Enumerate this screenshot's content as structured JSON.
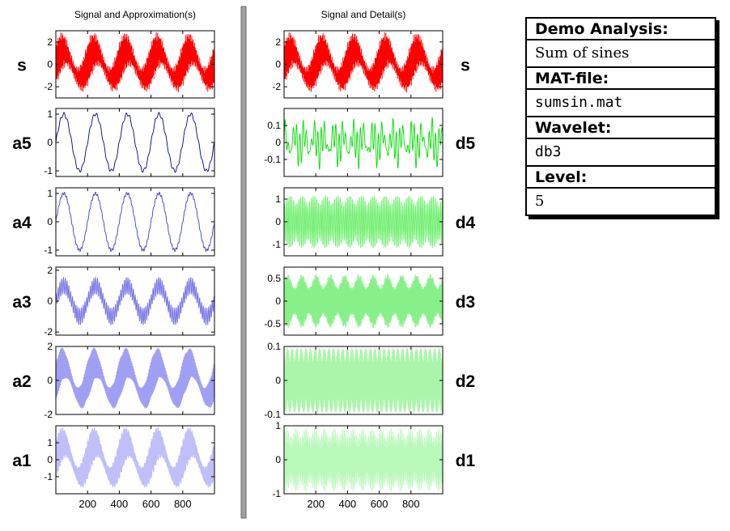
{
  "chart_data": [
    {
      "type": "line",
      "title": "Signal and Approximation(s)",
      "xlabel": "",
      "xlim": [
        0,
        1000
      ],
      "xticks": [
        200,
        400,
        600,
        800
      ],
      "grid": false,
      "rows": [
        {
          "name": "s",
          "color": "#ff0000",
          "ylim": [
            -3,
            3
          ],
          "yticks": [
            2,
            0,
            -2
          ],
          "ytick_labels": [
            "2",
            "0",
            "-2"
          ]
        },
        {
          "name": "a5",
          "color": "#00008f",
          "ylim": [
            -1.2,
            1.2
          ],
          "yticks": [
            1,
            0,
            -1
          ],
          "ytick_labels": [
            "1",
            "0",
            "-1"
          ]
        },
        {
          "name": "a4",
          "color": "#3f3fcc",
          "ylim": [
            -1.2,
            1.2
          ],
          "yticks": [
            1,
            0,
            -1
          ],
          "ytick_labels": [
            "1",
            "0",
            "-1"
          ]
        },
        {
          "name": "a3",
          "color": "#6f6fe6",
          "ylim": [
            -2.2,
            2.2
          ],
          "yticks": [
            2,
            0,
            -2
          ],
          "ytick_labels": [
            "2",
            "0",
            "-2"
          ]
        },
        {
          "name": "a2",
          "color": "#9f9ff3",
          "ylim": [
            -2,
            2
          ],
          "yticks": [
            2,
            0,
            -2
          ],
          "ytick_labels": [
            "2",
            "0",
            "-2"
          ]
        },
        {
          "name": "a1",
          "color": "#bfbffa",
          "ylim": [
            -2,
            2
          ],
          "yticks": [
            1,
            0,
            -1
          ],
          "ytick_labels": [
            "1",
            "0",
            "-1"
          ]
        }
      ]
    },
    {
      "type": "line",
      "title": "Signal and Detail(s)",
      "xlabel": "",
      "xlim": [
        0,
        1000
      ],
      "xticks": [
        200,
        400,
        600,
        800
      ],
      "grid": false,
      "rows": [
        {
          "name": "s",
          "color": "#ff0000",
          "ylim": [
            -3,
            3
          ],
          "yticks": [
            2,
            0,
            -2
          ],
          "ytick_labels": [
            "2",
            "0",
            "-2"
          ]
        },
        {
          "name": "d5",
          "color": "#00dd00",
          "ylim": [
            -0.2,
            0.2
          ],
          "yticks": [
            0.1,
            0,
            -0.1
          ],
          "ytick_labels": [
            "0.1",
            "0",
            "-0.1"
          ]
        },
        {
          "name": "d4",
          "color": "#66ee66",
          "ylim": [
            -1.5,
            1.5
          ],
          "yticks": [
            1,
            0,
            -1
          ],
          "ytick_labels": [
            "1",
            "0",
            "-1"
          ]
        },
        {
          "name": "d3",
          "color": "#88f088",
          "ylim": [
            -0.75,
            0.75
          ],
          "yticks": [
            0.5,
            0,
            -0.5
          ],
          "ytick_labels": [
            "0.5",
            "0",
            "-0.5"
          ]
        },
        {
          "name": "d2",
          "color": "#aaf5aa",
          "ylim": [
            -0.1,
            0.1
          ],
          "yticks": [
            0.1,
            0,
            -0.1
          ],
          "ytick_labels": [
            "0.1",
            "0",
            "-0.1"
          ]
        },
        {
          "name": "d1",
          "color": "#b8f8b8",
          "ylim": [
            -1,
            1
          ],
          "yticks": [
            1,
            0,
            -1
          ],
          "ytick_labels": [
            "1",
            "0",
            "-1"
          ]
        }
      ]
    }
  ],
  "info": {
    "analysis_title": "Demo Analysis:",
    "analysis_value": "Sum of sines",
    "matfile_title": "MAT-file:",
    "matfile_value": "sumsin.mat",
    "wavelet_title": "Wavelet:",
    "wavelet_value": "db3",
    "level_title": "Level:",
    "level_value": "5"
  }
}
